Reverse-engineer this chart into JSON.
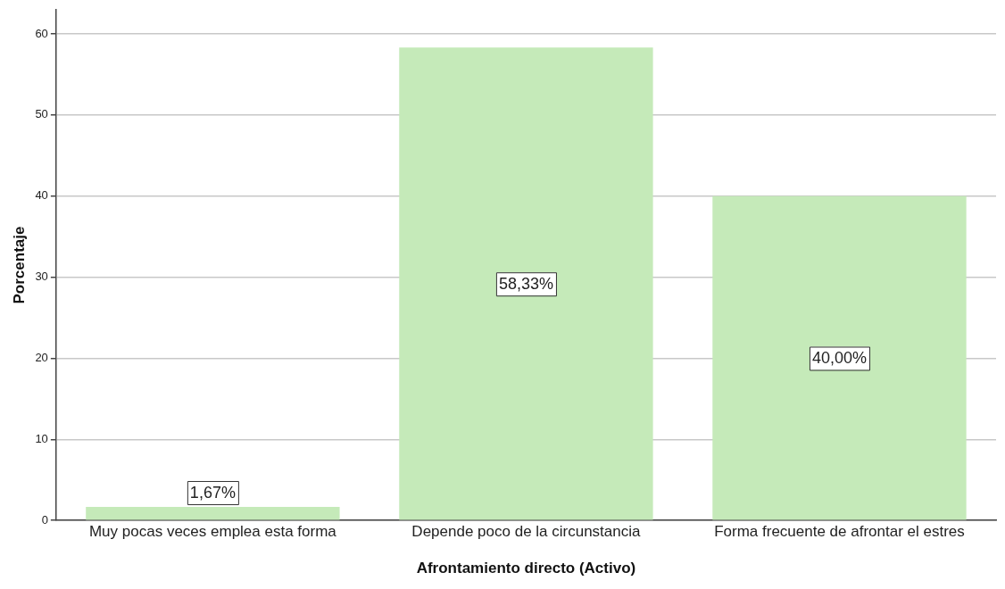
{
  "chart_data": {
    "type": "bar",
    "xlabel": "Afrontamiento directo (Activo)",
    "ylabel": "Porcentaje",
    "categories": [
      "Muy pocas veces emplea esta forma",
      "Depende poco de la circunstancia",
      "Forma frecuente de afrontar el estres"
    ],
    "values": [
      1.67,
      58.33,
      40.0
    ],
    "value_labels": [
      "1,67%",
      "58,33%",
      "40,00%"
    ],
    "color": "#c5eab9",
    "ylim": [
      0,
      63
    ],
    "yticks": [
      0,
      10,
      20,
      30,
      40,
      50,
      60
    ],
    "grid": "y",
    "legend": false
  }
}
